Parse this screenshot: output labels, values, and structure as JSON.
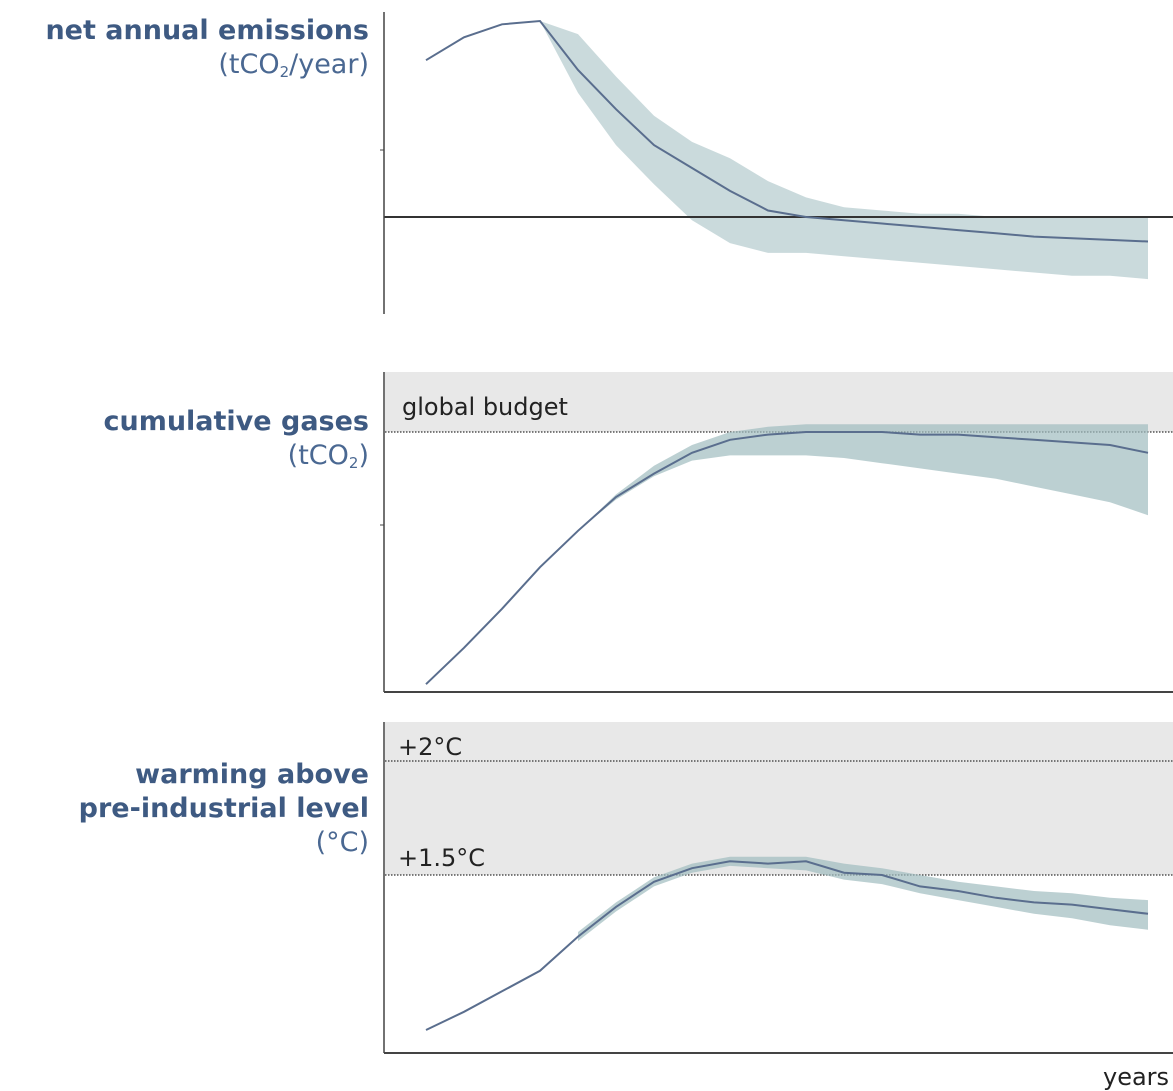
{
  "chart_data": [
    {
      "type": "line",
      "title": "net annual emissions",
      "units": [
        "(tCO",
        "2",
        "/year)"
      ],
      "reference_lines": [
        {
          "label": "",
          "style": "solid",
          "y": 0
        }
      ],
      "series": [
        {
          "x": [
            0,
            1,
            2,
            3,
            4,
            5,
            6,
            7,
            8,
            9,
            10,
            11,
            12,
            13,
            14,
            15,
            16,
            17,
            18,
            19
          ],
          "y": [
            0.48,
            0.55,
            0.59,
            0.6,
            0.45,
            0.33,
            0.22,
            0.15,
            0.08,
            0.02,
            0.0,
            -0.01,
            -0.02,
            -0.03,
            -0.04,
            -0.05,
            -0.06,
            -0.065,
            -0.07,
            -0.075
          ],
          "band_low": [
            null,
            null,
            null,
            0.6,
            0.38,
            0.22,
            0.1,
            -0.01,
            -0.08,
            -0.11,
            -0.11,
            -0.12,
            -0.13,
            -0.14,
            -0.15,
            -0.16,
            -0.17,
            -0.18,
            -0.18,
            -0.19
          ],
          "band_high": [
            null,
            null,
            null,
            0.6,
            0.56,
            0.43,
            0.31,
            0.23,
            0.18,
            0.11,
            0.06,
            0.03,
            0.02,
            0.01,
            0.01,
            0.0,
            0.0,
            0.0,
            0.0,
            0.0
          ]
        }
      ]
    },
    {
      "type": "line",
      "title": "cumulative gases",
      "units": [
        "(tCO",
        "2",
        ")"
      ],
      "reference_lines": [
        {
          "label": "global budget",
          "style": "dotted",
          "y": 1.0
        }
      ],
      "series": [
        {
          "x": [
            0,
            1,
            2,
            3,
            4,
            5,
            6,
            7,
            8,
            9,
            10,
            11,
            12,
            13,
            14,
            15,
            16,
            17,
            18,
            19
          ],
          "y": [
            0.03,
            0.17,
            0.32,
            0.48,
            0.62,
            0.75,
            0.84,
            0.92,
            0.97,
            0.99,
            1.0,
            1.0,
            1.0,
            0.99,
            0.99,
            0.98,
            0.97,
            0.96,
            0.95,
            0.92
          ],
          "band_low": [
            null,
            null,
            null,
            null,
            0.62,
            0.74,
            0.83,
            0.89,
            0.91,
            0.91,
            0.91,
            0.9,
            0.88,
            0.86,
            0.84,
            0.82,
            0.79,
            0.76,
            0.73,
            0.68
          ],
          "band_high": [
            null,
            null,
            null,
            null,
            0.62,
            0.76,
            0.87,
            0.95,
            1.0,
            1.02,
            1.03,
            1.03,
            1.03,
            1.03,
            1.03,
            1.03,
            1.03,
            1.03,
            1.03,
            1.03
          ]
        }
      ]
    },
    {
      "type": "line",
      "title": "warming above pre-industrial level",
      "units": [
        "(°C)"
      ],
      "reference_lines": [
        {
          "label": "+2°C",
          "style": "dotted",
          "y": 2.0
        },
        {
          "label": "+1.5°C",
          "style": "dotted",
          "y": 1.5
        }
      ],
      "series": [
        {
          "x": [
            0,
            1,
            2,
            3,
            4,
            5,
            6,
            7,
            8,
            9,
            10,
            11,
            12,
            13,
            14,
            15,
            16,
            17,
            18,
            19
          ],
          "y": [
            0.82,
            0.9,
            0.99,
            1.08,
            1.23,
            1.36,
            1.47,
            1.53,
            1.56,
            1.55,
            1.56,
            1.51,
            1.5,
            1.45,
            1.43,
            1.4,
            1.38,
            1.37,
            1.35,
            1.33
          ],
          "band_low": [
            null,
            null,
            null,
            null,
            1.21,
            1.34,
            1.45,
            1.51,
            1.54,
            1.53,
            1.52,
            1.48,
            1.46,
            1.42,
            1.39,
            1.36,
            1.33,
            1.31,
            1.28,
            1.26
          ],
          "band_high": [
            null,
            null,
            null,
            null,
            1.25,
            1.38,
            1.49,
            1.55,
            1.58,
            1.58,
            1.58,
            1.55,
            1.53,
            1.5,
            1.47,
            1.45,
            1.43,
            1.42,
            1.4,
            1.39
          ]
        }
      ]
    }
  ],
  "labels": {
    "p1_title": "net annual emissions",
    "p1_unit_a": "(tCO",
    "p1_unit_sub": "2",
    "p1_unit_b": "/year)",
    "p2_title": "cumulative gases",
    "p2_unit_a": "(tCO",
    "p2_unit_sub": "2",
    "p2_unit_b": ")",
    "p3_title_1": "warming above",
    "p3_title_2": "pre-industrial level",
    "p3_unit": "(°C)",
    "global_budget": "global budget",
    "ref_2c": "+2°C",
    "ref_15c": "+1.5°C",
    "xlabel": "years"
  },
  "colors": {
    "line": "#5a6e8e",
    "band": "#9fbcbf",
    "label": "#3e5a82",
    "shade": "#e8e8e8",
    "axis": "#444444"
  }
}
